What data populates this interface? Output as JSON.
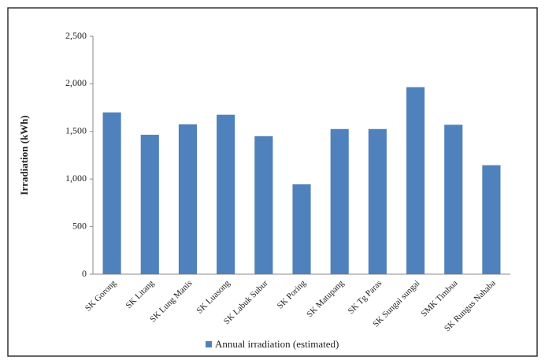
{
  "chart_data": {
    "type": "bar",
    "y_label": "Irradiation (kWh)",
    "categories": [
      "SK Gorong",
      "SK Litang",
      "SK Lung Manis",
      "SK Luasong",
      "SK Labuk Subur",
      "SK Poring",
      "SK Matupang",
      "SK Tg Paras",
      "SK Sungai sungai",
      "SMK Timbua",
      "SK Rungus Nahaba"
    ],
    "series": [
      {
        "name": "Annual irradiation (estimated)",
        "color": "#4f81bd",
        "values": [
          1700,
          1465,
          1575,
          1675,
          1450,
          945,
          1525,
          1525,
          1965,
          1570,
          1145
        ]
      }
    ],
    "ylim": [
      0,
      2500
    ],
    "yticks": [
      0,
      500,
      {
        "value": 1000,
        "label": "1,000"
      },
      {
        "value": 1500,
        "label": "1,500"
      },
      {
        "value": 2000,
        "label": "2,000"
      },
      {
        "value": 2500,
        "label": "2,500"
      }
    ],
    "grid": false,
    "legend": "bottom"
  }
}
